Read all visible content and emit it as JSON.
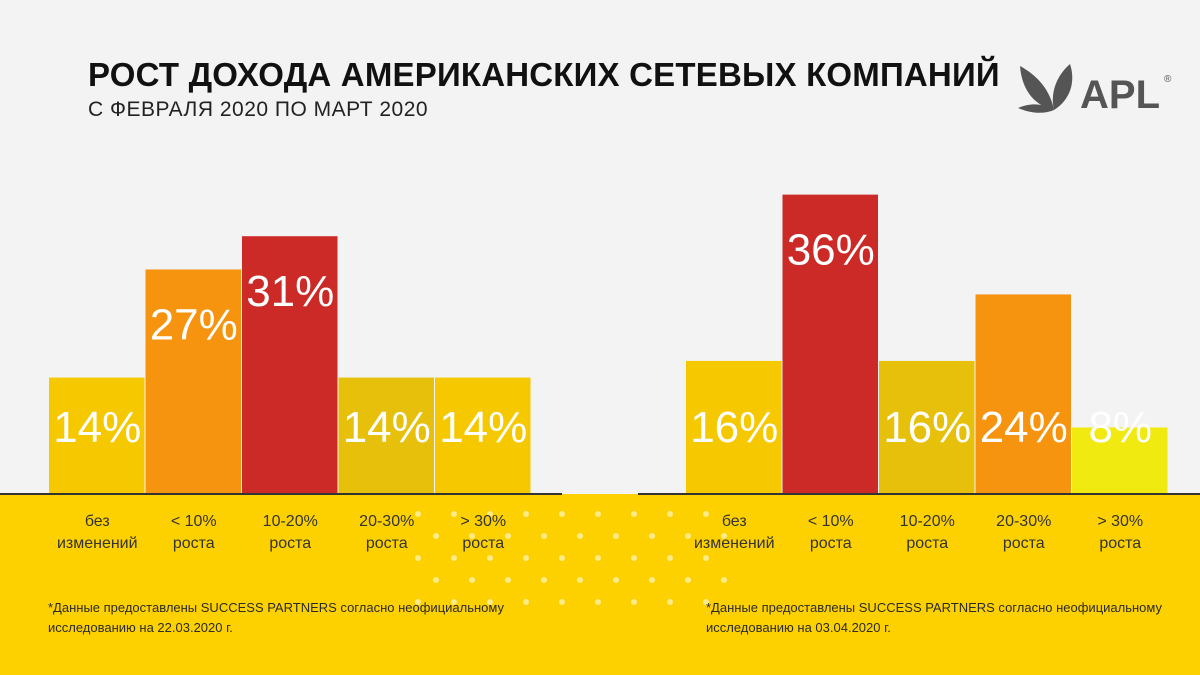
{
  "header": {
    "title": "РОСТ ДОХОДА АМЕРИКАНСКИХ СЕТЕВЫХ КОМПАНИЙ",
    "subtitle": "С ФЕВРАЛЯ 2020 ПО МАРТ 2020"
  },
  "logo": {
    "text": "APL",
    "mark": "®",
    "icon": "leaves-icon"
  },
  "colors": {
    "background": "#f3f3f3",
    "band": "#fdd100",
    "axis": "#333333",
    "dots": "#fff0a0",
    "bar_yellow": "#f5c800",
    "bar_yellow_dark": "#e7c00b",
    "bar_orange": "#f7940f",
    "bar_red": "#cc2a27",
    "bar_light_yellow": "#f1ea10"
  },
  "chart_data": [
    {
      "type": "bar",
      "categories": [
        "без изменений",
        "< 10% роста",
        "10-20% роста",
        "20-30% роста",
        "> 30% роста"
      ],
      "values": [
        14,
        27,
        31,
        14,
        14
      ],
      "value_labels": [
        "14%",
        "27%",
        "31%",
        "14%",
        "14%"
      ],
      "bar_colors": [
        "#f5c800",
        "#f7940f",
        "#cc2a27",
        "#e7c00b",
        "#f5c800"
      ],
      "unit": "%",
      "ylim": [
        0,
        38
      ],
      "grid": false,
      "legend": "none",
      "footnote": "*Данные предоставлены SUCCESS PARTNERS согласно неофициальному исследованию на 22.03.2020 г."
    },
    {
      "type": "bar",
      "categories": [
        "без изменений",
        "< 10% роста",
        "10-20% роста",
        "20-30% роста",
        "> 30% роста"
      ],
      "values": [
        16,
        36,
        16,
        24,
        8
      ],
      "value_labels": [
        "16%",
        "36%",
        "16%",
        "24%",
        "8%"
      ],
      "bar_colors": [
        "#f5c800",
        "#cc2a27",
        "#e7c00b",
        "#f7940f",
        "#f1ea10"
      ],
      "unit": "%",
      "ylim": [
        0,
        38
      ],
      "grid": false,
      "legend": "none",
      "footnote": "*Данные предоставлены SUCCESS PARTNERS согласно неофициальному исследованию на 03.04.2020 г."
    }
  ]
}
